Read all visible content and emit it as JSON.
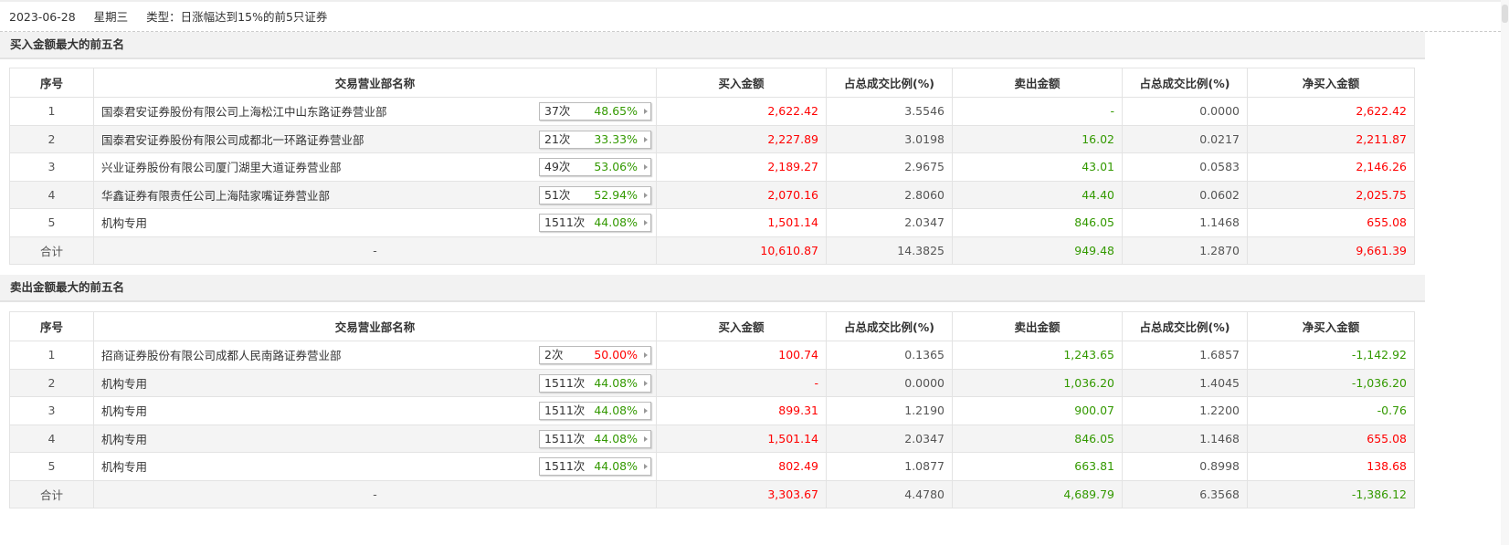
{
  "header": {
    "date": "2023-06-28",
    "weekday": "星期三",
    "type": "类型：日涨幅达到15%的前5只证券"
  },
  "columns": [
    "序号",
    "交易营业部名称",
    "买入金额",
    "占总成交比例(%)",
    "卖出金额",
    "占总成交比例(%)",
    "净买入金额"
  ],
  "colors": {
    "red": "#ff0000",
    "green": "#339900"
  },
  "buy_top5": {
    "title": "买入金额最大的前五名",
    "rows": [
      {
        "idx": "1",
        "name": "国泰君安证券股份有限公司上海松江中山东路证券营业部",
        "times": "37次",
        "pct": "48.65%",
        "buy": "2,622.42",
        "buy_ratio": "3.5546",
        "sell": "-",
        "sell_ratio": "0.0000",
        "net": "2,622.42"
      },
      {
        "idx": "2",
        "name": "国泰君安证券股份有限公司成都北一环路证券营业部",
        "times": "21次",
        "pct": "33.33%",
        "buy": "2,227.89",
        "buy_ratio": "3.0198",
        "sell": "16.02",
        "sell_ratio": "0.0217",
        "net": "2,211.87"
      },
      {
        "idx": "3",
        "name": "兴业证券股份有限公司厦门湖里大道证券营业部",
        "times": "49次",
        "pct": "53.06%",
        "buy": "2,189.27",
        "buy_ratio": "2.9675",
        "sell": "43.01",
        "sell_ratio": "0.0583",
        "net": "2,146.26"
      },
      {
        "idx": "4",
        "name": "华鑫证券有限责任公司上海陆家嘴证券营业部",
        "times": "51次",
        "pct": "52.94%",
        "buy": "2,070.16",
        "buy_ratio": "2.8060",
        "sell": "44.40",
        "sell_ratio": "0.0602",
        "net": "2,025.75"
      },
      {
        "idx": "5",
        "name": "机构专用",
        "times": "1511次",
        "pct": "44.08%",
        "buy": "1,501.14",
        "buy_ratio": "2.0347",
        "sell": "846.05",
        "sell_ratio": "1.1468",
        "net": "655.08"
      }
    ],
    "total": {
      "label": "合计",
      "name": "-",
      "buy": "10,610.87",
      "buy_ratio": "14.3825",
      "sell": "949.48",
      "sell_ratio": "1.2870",
      "net": "9,661.39"
    }
  },
  "sell_top5": {
    "title": "卖出金额最大的前五名",
    "rows": [
      {
        "idx": "1",
        "name": "招商证券股份有限公司成都人民南路证券营业部",
        "times": "2次",
        "pct": "50.00%",
        "buy": "100.74",
        "buy_ratio": "0.1365",
        "sell": "1,243.65",
        "sell_ratio": "1.6857",
        "net": "-1,142.92"
      },
      {
        "idx": "2",
        "name": "机构专用",
        "times": "1511次",
        "pct": "44.08%",
        "buy": "-",
        "buy_ratio": "0.0000",
        "sell": "1,036.20",
        "sell_ratio": "1.4045",
        "net": "-1,036.20"
      },
      {
        "idx": "3",
        "name": "机构专用",
        "times": "1511次",
        "pct": "44.08%",
        "buy": "899.31",
        "buy_ratio": "1.2190",
        "sell": "900.07",
        "sell_ratio": "1.2200",
        "net": "-0.76"
      },
      {
        "idx": "4",
        "name": "机构专用",
        "times": "1511次",
        "pct": "44.08%",
        "buy": "1,501.14",
        "buy_ratio": "2.0347",
        "sell": "846.05",
        "sell_ratio": "1.1468",
        "net": "655.08"
      },
      {
        "idx": "5",
        "name": "机构专用",
        "times": "1511次",
        "pct": "44.08%",
        "buy": "802.49",
        "buy_ratio": "1.0877",
        "sell": "663.81",
        "sell_ratio": "0.8998",
        "net": "138.68"
      }
    ],
    "total": {
      "label": "合计",
      "name": "-",
      "buy": "3,303.67",
      "buy_ratio": "4.4780",
      "sell": "4,689.79",
      "sell_ratio": "6.3568",
      "net": "-1,386.12"
    }
  }
}
